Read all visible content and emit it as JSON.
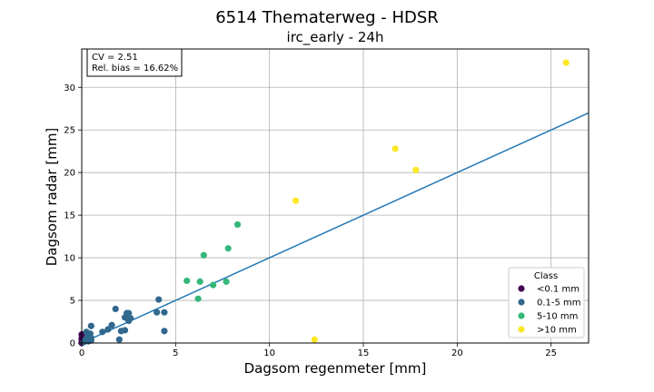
{
  "chart_data": {
    "type": "scatter",
    "suptitle": "6514 Thematerweg - HDSR",
    "title": "irc_early - 24h",
    "xlabel": "Dagsom regenmeter [mm]",
    "ylabel": "Dagsom radar [mm]",
    "xlim": [
      0,
      27
    ],
    "ylim": [
      0,
      34.5
    ],
    "xticks": [
      0,
      5,
      10,
      15,
      20,
      25
    ],
    "yticks": [
      0,
      5,
      10,
      15,
      20,
      25,
      30
    ],
    "grid": true,
    "stats": {
      "cv": "CV = 2.51",
      "bias": "Rel. bias = 16.62%"
    },
    "fit_line": {
      "slope": 1.0,
      "intercept": 0.0,
      "color": "#1f77b4"
    },
    "legend": {
      "title": "Class",
      "placement": "lower-right"
    },
    "classes": [
      {
        "name": "<0.1 mm",
        "color": "#440154",
        "points": [
          [
            0.0,
            0.0
          ],
          [
            0.0,
            0.3
          ],
          [
            0.0,
            0.6
          ],
          [
            0.0,
            1.0
          ],
          [
            0.05,
            0.2
          ]
        ]
      },
      {
        "name": "0.1-5 mm",
        "color": "#31688e",
        "points": [
          [
            0.1,
            0.1
          ],
          [
            0.2,
            0.4
          ],
          [
            0.25,
            1.3
          ],
          [
            0.3,
            0.7
          ],
          [
            0.35,
            0.2
          ],
          [
            0.4,
            0.9
          ],
          [
            0.45,
            1.1
          ],
          [
            0.5,
            0.3
          ],
          [
            0.5,
            2.0
          ],
          [
            0.5,
            0.6
          ],
          [
            1.1,
            1.3
          ],
          [
            1.4,
            1.6
          ],
          [
            1.6,
            2.1
          ],
          [
            1.8,
            4.0
          ],
          [
            2.0,
            0.4
          ],
          [
            2.1,
            1.4
          ],
          [
            2.3,
            1.5
          ],
          [
            2.3,
            3.0
          ],
          [
            2.4,
            3.5
          ],
          [
            2.5,
            2.6
          ],
          [
            2.5,
            3.5
          ],
          [
            2.6,
            2.9
          ],
          [
            4.0,
            3.6
          ],
          [
            4.1,
            5.1
          ],
          [
            4.4,
            3.6
          ],
          [
            4.4,
            1.4
          ]
        ]
      },
      {
        "name": "5-10 mm",
        "color": "#35b779",
        "points": [
          [
            5.6,
            7.3
          ],
          [
            6.2,
            5.2
          ],
          [
            6.3,
            7.2
          ],
          [
            6.5,
            10.3
          ],
          [
            7.0,
            6.8
          ],
          [
            7.7,
            7.2
          ],
          [
            7.8,
            11.1
          ],
          [
            8.3,
            13.9
          ]
        ]
      },
      {
        "name": ">10 mm",
        "color": "#fde725",
        "points": [
          [
            11.4,
            16.7
          ],
          [
            12.4,
            0.4
          ],
          [
            16.7,
            22.8
          ],
          [
            17.8,
            20.3
          ],
          [
            25.8,
            32.9
          ]
        ]
      }
    ]
  }
}
